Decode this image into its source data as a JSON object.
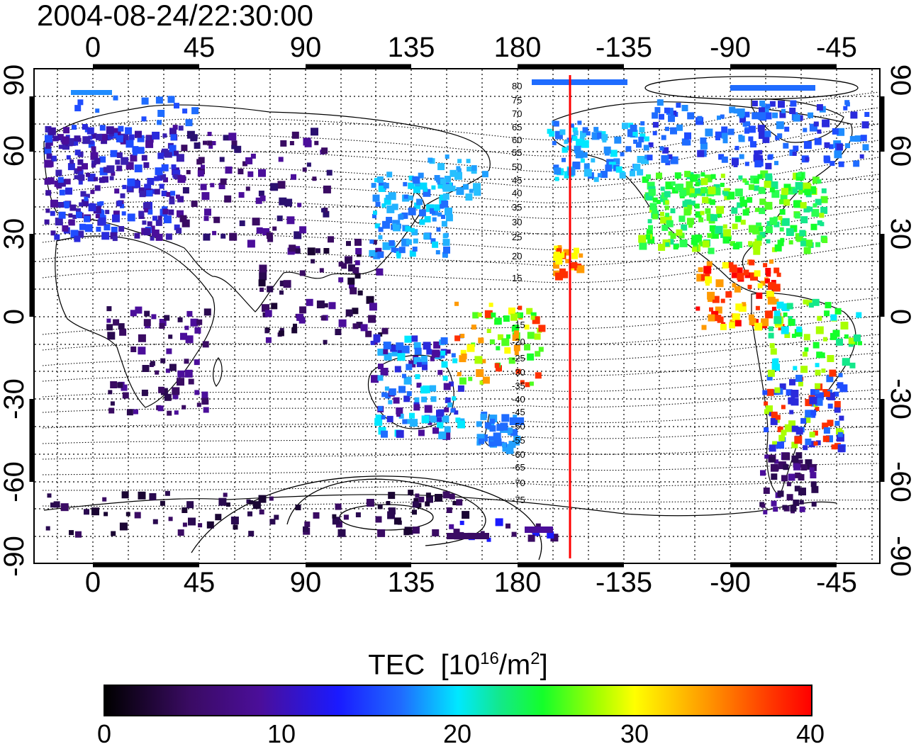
{
  "timestamp": "2004-08-24/22:30:00",
  "map": {
    "x_ticks": [
      "0",
      "45",
      "90",
      "135",
      "180",
      "-135",
      "-90",
      "-45"
    ],
    "y_ticks": [
      "90",
      "60",
      "30",
      "0",
      "-30",
      "-60",
      "-90"
    ],
    "magnetic_latitude_labels": [
      "80",
      "75",
      "70",
      "65",
      "60",
      "55",
      "50",
      "45",
      "40",
      "35",
      "30",
      "25",
      "20",
      "15",
      "-15",
      "-20",
      "-25",
      "-30",
      "-35",
      "-40",
      "-45",
      "-50",
      "-55",
      "-60",
      "-65",
      "-70",
      "-75"
    ],
    "meridian_marker_longitude": -157.5,
    "meridian_marker_color": "#ff0000"
  },
  "colorbar": {
    "title": "TEC",
    "unit_base": "[10",
    "unit_exp": "16",
    "unit_mid": "/m",
    "unit_exp2": "2",
    "unit_end": "]",
    "ticks": [
      "0",
      "10",
      "20",
      "30",
      "40"
    ],
    "min": 0,
    "max": 40
  }
}
